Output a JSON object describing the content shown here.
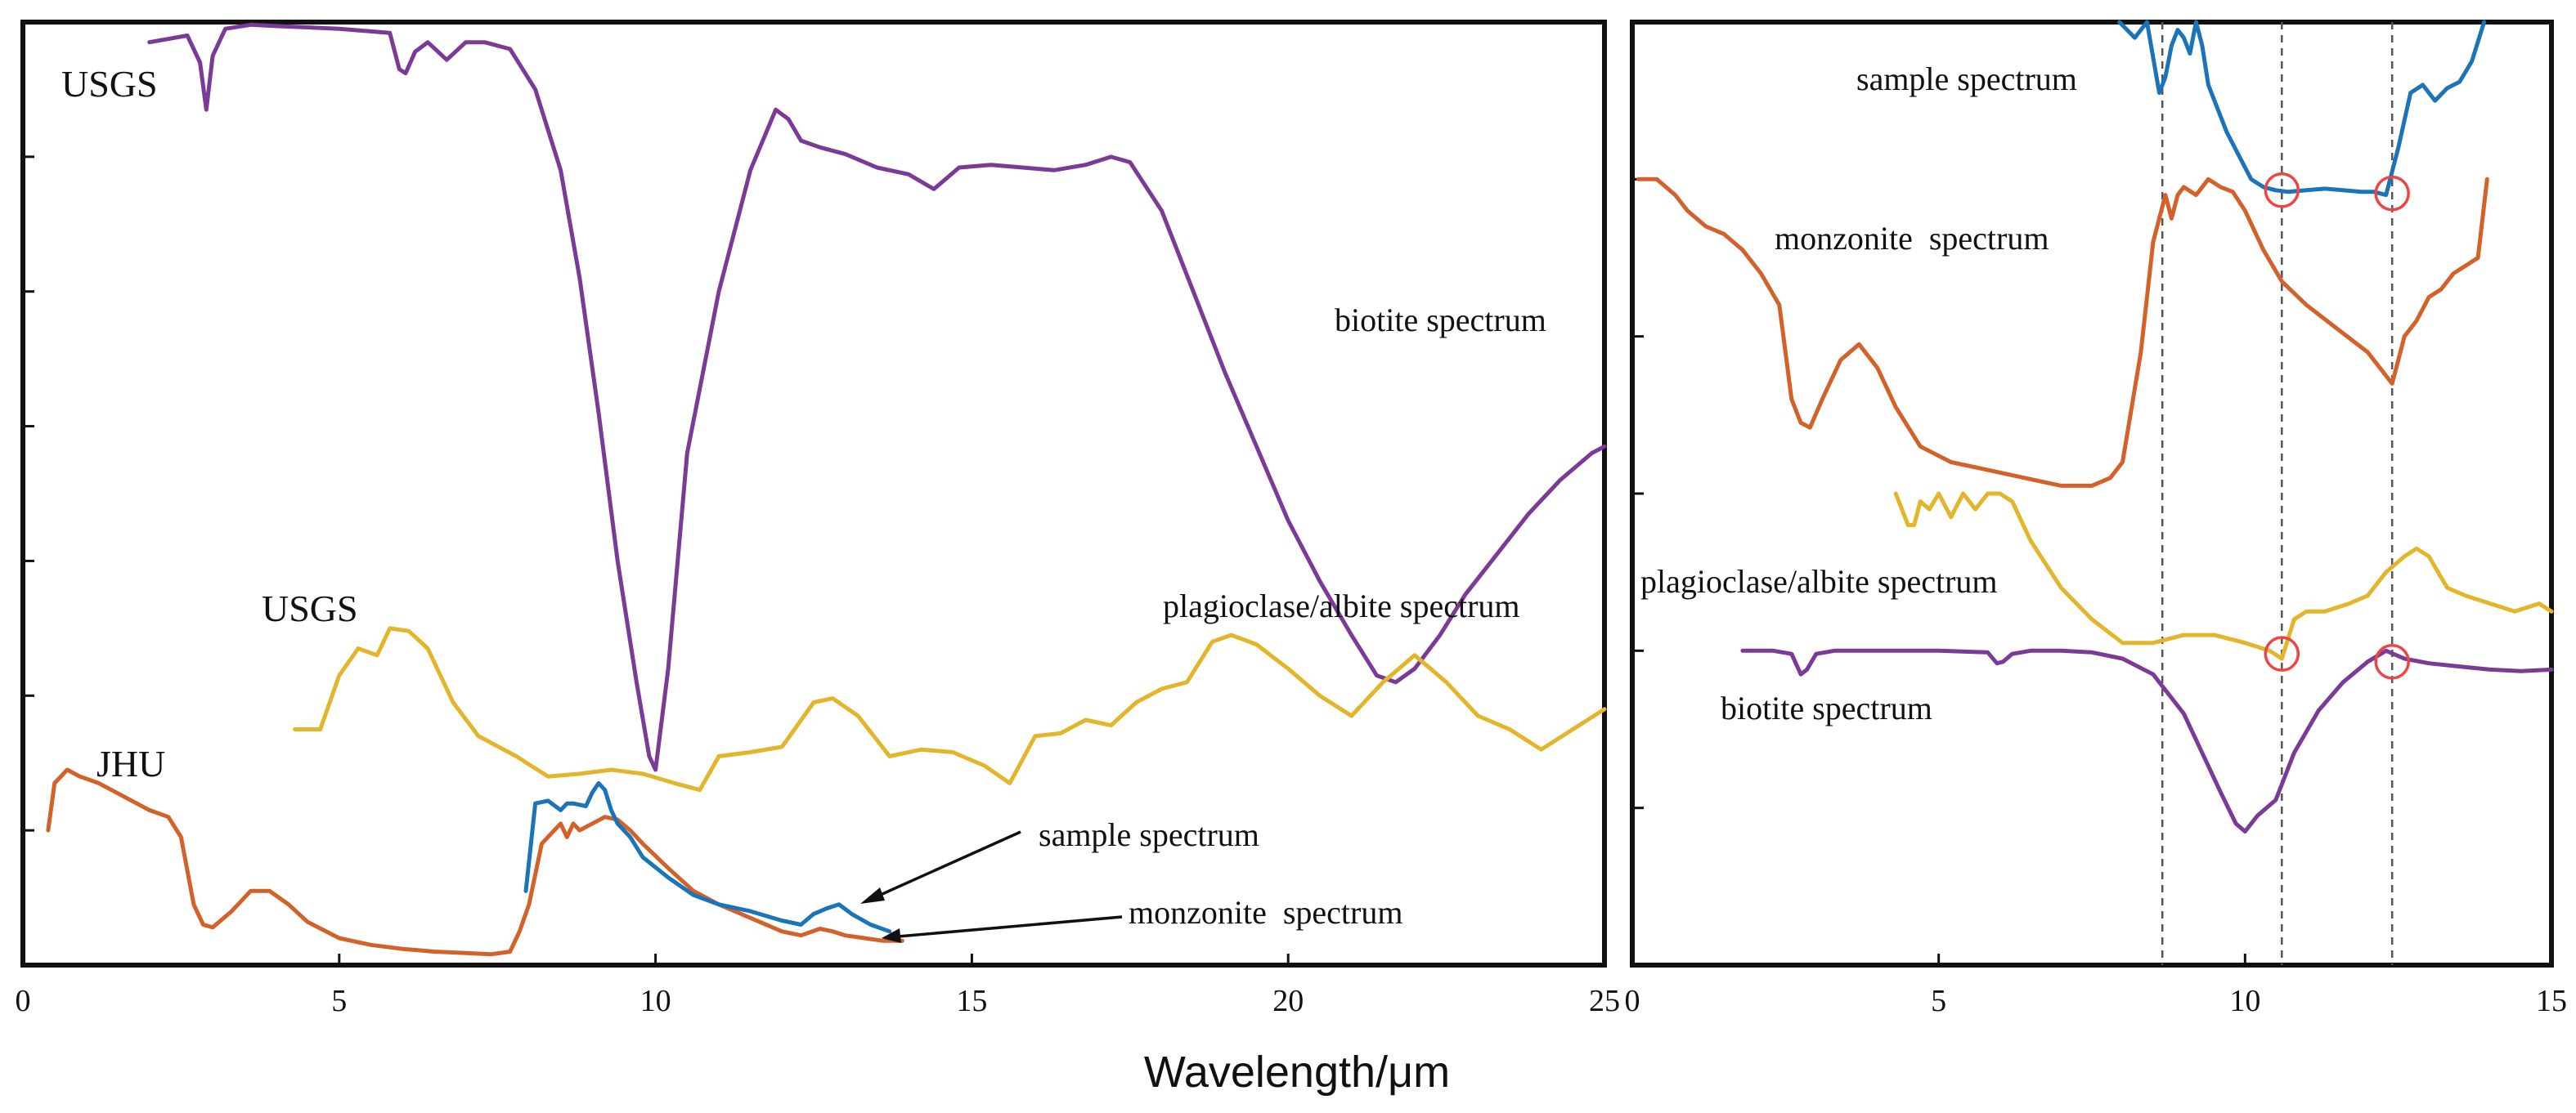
{
  "chart_data": [
    {
      "type": "line",
      "panel": "left",
      "xlabel": "Wavelength/μm",
      "ylabel": "",
      "xlim": [
        0,
        25
      ],
      "ylim": [
        0,
        7
      ],
      "xticks": [
        "0",
        "5",
        "10",
        "15",
        "20",
        "25"
      ],
      "source_labels": [
        "USGS",
        "USGS",
        "JHU"
      ],
      "annotations": [
        "sample spectrum",
        "monzonite  spectrum"
      ],
      "series": [
        {
          "name": "biotite spectrum",
          "color": "#7b3a96",
          "x": [
            2,
            2.6,
            2.8,
            2.9,
            3.0,
            3.2,
            3.6,
            4,
            5,
            5.8,
            5.95,
            6.05,
            6.2,
            6.4,
            6.7,
            7,
            7.3,
            7.7,
            8.1,
            8.5,
            8.8,
            9.1,
            9.4,
            9.7,
            9.9,
            10.0,
            10.2,
            10.5,
            11,
            11.5,
            11.9,
            12.1,
            12.3,
            12.6,
            13,
            13.5,
            14,
            14.4,
            14.8,
            15.3,
            15.8,
            16.3,
            16.8,
            17.2,
            17.5,
            18,
            18.5,
            19,
            19.5,
            20,
            20.5,
            21,
            21.4,
            21.7,
            22,
            22.4,
            22.8,
            23.3,
            23.8,
            24.3,
            24.8,
            25
          ],
          "y": [
            6.85,
            6.9,
            6.7,
            6.35,
            6.75,
            6.95,
            6.98,
            6.97,
            6.95,
            6.92,
            6.65,
            6.62,
            6.78,
            6.85,
            6.72,
            6.85,
            6.85,
            6.8,
            6.5,
            5.9,
            5.1,
            4.1,
            3.0,
            2.1,
            1.55,
            1.45,
            2.2,
            3.8,
            5.0,
            5.9,
            6.35,
            6.28,
            6.12,
            6.07,
            6.02,
            5.92,
            5.87,
            5.76,
            5.92,
            5.94,
            5.92,
            5.9,
            5.94,
            6.0,
            5.96,
            5.6,
            5.0,
            4.4,
            3.85,
            3.3,
            2.85,
            2.45,
            2.15,
            2.1,
            2.2,
            2.45,
            2.75,
            3.05,
            3.35,
            3.6,
            3.8,
            3.85
          ]
        },
        {
          "name": "plagioclase/albite spectrum",
          "color": "#e3b52b",
          "x": [
            4.3,
            4.7,
            5.0,
            5.3,
            5.6,
            5.8,
            6.1,
            6.4,
            6.8,
            7.2,
            7.8,
            8.3,
            8.8,
            9.3,
            9.8,
            10.3,
            10.7,
            11,
            11.5,
            12,
            12.5,
            12.8,
            13.2,
            13.7,
            14.2,
            14.7,
            15.2,
            15.6,
            16,
            16.4,
            16.8,
            17.2,
            17.6,
            18,
            18.4,
            18.8,
            19.1,
            19.5,
            20,
            20.5,
            21,
            21.5,
            22,
            22.5,
            23,
            23.5,
            24,
            24.5,
            25
          ],
          "y": [
            1.75,
            1.75,
            2.15,
            2.35,
            2.3,
            2.5,
            2.48,
            2.35,
            1.95,
            1.7,
            1.55,
            1.4,
            1.42,
            1.45,
            1.42,
            1.35,
            1.3,
            1.55,
            1.58,
            1.62,
            1.95,
            1.98,
            1.85,
            1.55,
            1.6,
            1.58,
            1.48,
            1.35,
            1.7,
            1.72,
            1.82,
            1.78,
            1.95,
            2.05,
            2.1,
            2.4,
            2.45,
            2.38,
            2.2,
            2.0,
            1.85,
            2.1,
            2.3,
            2.1,
            1.85,
            1.75,
            1.6,
            1.75,
            1.9
          ]
        },
        {
          "name": "monzonite  spectrum",
          "color": "#d2622a",
          "x": [
            0.4,
            0.5,
            0.7,
            0.9,
            1.2,
            1.6,
            2.0,
            2.3,
            2.5,
            2.7,
            2.85,
            3.0,
            3.3,
            3.6,
            3.9,
            4.2,
            4.5,
            5.0,
            5.5,
            6.0,
            6.5,
            7.0,
            7.4,
            7.7,
            7.85,
            8.0,
            8.2,
            8.4,
            8.5,
            8.6,
            8.7,
            8.8,
            9.0,
            9.2,
            9.4,
            9.6,
            9.8,
            10.2,
            10.6,
            11,
            11.5,
            12,
            12.3,
            12.6,
            12.8,
            13,
            13.3,
            13.6,
            13.9
          ],
          "y": [
            1.0,
            1.35,
            1.45,
            1.4,
            1.35,
            1.25,
            1.15,
            1.1,
            0.95,
            0.45,
            0.3,
            0.28,
            0.4,
            0.55,
            0.55,
            0.45,
            0.32,
            0.2,
            0.15,
            0.12,
            0.1,
            0.09,
            0.08,
            0.1,
            0.25,
            0.45,
            0.9,
            1.0,
            1.05,
            0.95,
            1.05,
            1.0,
            1.05,
            1.1,
            1.08,
            1.0,
            0.9,
            0.72,
            0.55,
            0.45,
            0.35,
            0.25,
            0.22,
            0.27,
            0.25,
            0.22,
            0.2,
            0.18,
            0.18
          ]
        },
        {
          "name": "sample spectrum",
          "color": "#1b74b8",
          "x": [
            7.95,
            8.1,
            8.3,
            8.5,
            8.6,
            8.7,
            8.9,
            9.0,
            9.1,
            9.2,
            9.3,
            9.4,
            9.6,
            9.8,
            10.2,
            10.6,
            11,
            11.5,
            12,
            12.3,
            12.5,
            12.7,
            12.9,
            13.1,
            13.4,
            13.7
          ],
          "y": [
            0.55,
            1.2,
            1.22,
            1.15,
            1.2,
            1.2,
            1.18,
            1.28,
            1.35,
            1.3,
            1.15,
            1.05,
            0.95,
            0.8,
            0.65,
            0.52,
            0.45,
            0.4,
            0.33,
            0.3,
            0.38,
            0.42,
            0.45,
            0.38,
            0.3,
            0.25
          ]
        }
      ]
    },
    {
      "type": "line",
      "panel": "right",
      "xlabel": "",
      "ylabel": "",
      "xlim": [
        0,
        15
      ],
      "ylim": [
        0,
        6
      ],
      "xticks": [
        "0",
        "5",
        "10",
        "15"
      ],
      "reference_lines_x": [
        8.65,
        10.6,
        12.4
      ],
      "markers": [
        {
          "series": "sample spectrum",
          "x": 10.6,
          "y": 4.93
        },
        {
          "series": "sample spectrum",
          "x": 12.4,
          "y": 4.91
        },
        {
          "series": "plagioclase/albite spectrum",
          "x": 10.6,
          "y": 1.98
        },
        {
          "series": "biotite spectrum",
          "x": 12.4,
          "y": 1.93
        }
      ],
      "series": [
        {
          "name": "sample spectrum",
          "color": "#1b74b8",
          "x": [
            7.95,
            8.2,
            8.4,
            8.6,
            8.7,
            8.8,
            8.9,
            9.0,
            9.1,
            9.2,
            9.3,
            9.4,
            9.5,
            9.7,
            9.9,
            10.1,
            10.3,
            10.5,
            10.7,
            11.0,
            11.3,
            11.6,
            11.9,
            12.1,
            12.3,
            12.5,
            12.7,
            12.9,
            13.1,
            13.3,
            13.5,
            13.7,
            13.9
          ],
          "y": [
            6.0,
            5.9,
            6.0,
            5.55,
            5.65,
            5.85,
            5.95,
            5.9,
            5.8,
            6.0,
            5.85,
            5.6,
            5.5,
            5.3,
            5.15,
            5.0,
            4.95,
            4.93,
            4.92,
            4.93,
            4.94,
            4.93,
            4.92,
            4.92,
            4.9,
            5.2,
            5.55,
            5.6,
            5.5,
            5.58,
            5.62,
            5.75,
            6.0
          ]
        },
        {
          "name": "monzonite  spectrum",
          "color": "#d2622a",
          "x": [
            0.1,
            0.4,
            0.7,
            0.9,
            1.2,
            1.5,
            1.8,
            2.1,
            2.4,
            2.6,
            2.75,
            2.9,
            3.1,
            3.4,
            3.7,
            4.0,
            4.3,
            4.7,
            5.2,
            5.8,
            6.4,
            7.0,
            7.5,
            7.8,
            8.0,
            8.3,
            8.5,
            8.7,
            8.8,
            8.9,
            9.0,
            9.2,
            9.4,
            9.6,
            9.8,
            10.0,
            10.3,
            10.6,
            11,
            11.5,
            12.0,
            12.3,
            12.4,
            12.6,
            12.8,
            13.0,
            13.2,
            13.4,
            13.6,
            13.8,
            13.95
          ],
          "y": [
            5.0,
            5.0,
            4.9,
            4.8,
            4.7,
            4.65,
            4.55,
            4.4,
            4.2,
            3.6,
            3.45,
            3.42,
            3.6,
            3.85,
            3.95,
            3.8,
            3.55,
            3.3,
            3.2,
            3.15,
            3.1,
            3.05,
            3.05,
            3.1,
            3.2,
            3.9,
            4.6,
            4.9,
            4.75,
            4.9,
            4.95,
            4.9,
            5.0,
            4.95,
            4.92,
            4.8,
            4.55,
            4.35,
            4.2,
            4.05,
            3.9,
            3.75,
            3.7,
            4.0,
            4.1,
            4.25,
            4.3,
            4.4,
            4.45,
            4.5,
            5.0
          ]
        },
        {
          "name": "plagioclase/albite spectrum",
          "color": "#e3b52b",
          "x": [
            4.3,
            4.5,
            4.6,
            4.7,
            4.85,
            5.0,
            5.2,
            5.4,
            5.6,
            5.8,
            6.0,
            6.2,
            6.5,
            7.0,
            7.5,
            8.0,
            8.5,
            9.0,
            9.5,
            10.0,
            10.4,
            10.6,
            10.8,
            11.0,
            11.3,
            11.7,
            12.0,
            12.3,
            12.6,
            12.8,
            13.0,
            13.3,
            13.6,
            14.0,
            14.4,
            14.8,
            15.0
          ],
          "y": [
            3.0,
            2.8,
            2.8,
            2.95,
            2.9,
            3.0,
            2.85,
            3.0,
            2.9,
            3.0,
            3.0,
            2.95,
            2.7,
            2.4,
            2.2,
            2.05,
            2.05,
            2.1,
            2.1,
            2.05,
            2.0,
            1.95,
            2.2,
            2.25,
            2.25,
            2.3,
            2.35,
            2.5,
            2.6,
            2.65,
            2.6,
            2.4,
            2.35,
            2.3,
            2.25,
            2.3,
            2.25
          ]
        },
        {
          "name": "biotite spectrum",
          "color": "#7b3a96",
          "x": [
            1.8,
            2.3,
            2.6,
            2.75,
            2.85,
            3.0,
            3.3,
            4.0,
            5.0,
            5.8,
            5.95,
            6.05,
            6.2,
            6.5,
            7.0,
            7.5,
            8.0,
            8.5,
            9.0,
            9.3,
            9.6,
            9.85,
            10.0,
            10.2,
            10.5,
            10.8,
            11.2,
            11.6,
            12.0,
            12.3,
            12.6,
            13.0,
            13.5,
            14.0,
            14.5,
            15.0
          ],
          "y": [
            2.0,
            2.0,
            1.98,
            1.85,
            1.88,
            1.98,
            2.0,
            2.0,
            2.0,
            1.99,
            1.92,
            1.93,
            1.98,
            2.0,
            2.0,
            1.99,
            1.95,
            1.85,
            1.6,
            1.35,
            1.1,
            0.9,
            0.85,
            0.95,
            1.05,
            1.35,
            1.62,
            1.8,
            1.93,
            2.0,
            1.95,
            1.92,
            1.9,
            1.88,
            1.87,
            1.88
          ]
        }
      ]
    }
  ]
}
